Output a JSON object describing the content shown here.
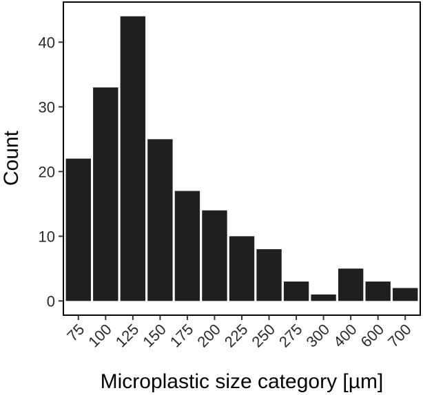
{
  "chart_data": {
    "type": "bar",
    "title": "",
    "xlabel": "Microplastic size category [µm]",
    "ylabel": "Count",
    "categories": [
      "75",
      "100",
      "125",
      "150",
      "175",
      "200",
      "225",
      "250",
      "275",
      "300",
      "400",
      "600",
      "700"
    ],
    "values": [
      22,
      33,
      44,
      25,
      17,
      14,
      10,
      8,
      3,
      1,
      5,
      3,
      2
    ],
    "ylim": [
      -2.2,
      46.2
    ],
    "yticks": [
      0,
      10,
      20,
      30,
      40
    ],
    "grid": false,
    "bar_color": "#1f1f1f"
  }
}
